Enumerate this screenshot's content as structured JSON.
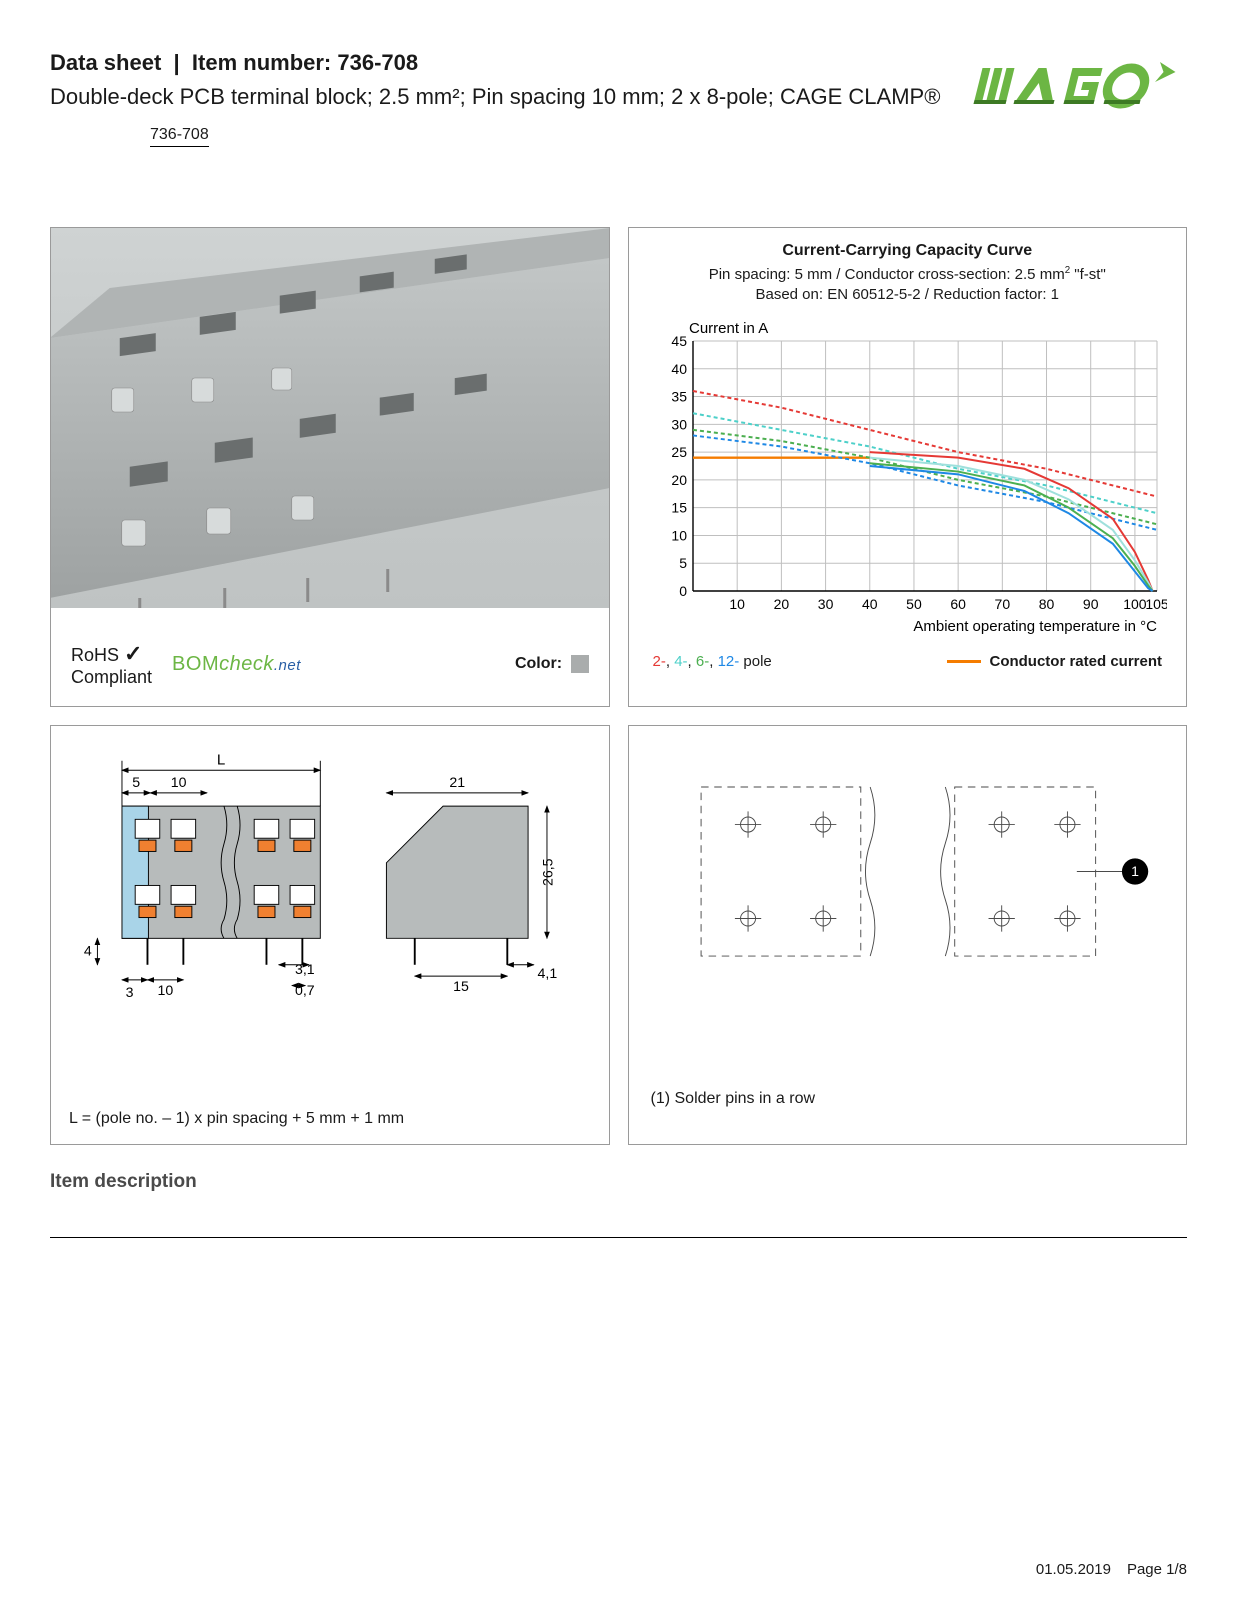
{
  "header": {
    "title_prefix": "Data sheet",
    "title_sep": "|",
    "title_label": "Item number:",
    "item_number": "736-708",
    "subtitle": "Double-deck PCB terminal block; 2.5 mm²; Pin spacing 10 mm; 2 x 8-pole; CAGE CLAMP®",
    "badge": "736-708"
  },
  "logo": {
    "brand": "WAGO",
    "fill": "#6cb644",
    "shadow": "#3d7a24"
  },
  "product_panel": {
    "rohs_label": "RoHS",
    "compliant_label": "Compliant",
    "bom_label": "BOM",
    "bom_check": "check",
    "bom_net": ".net",
    "color_label": "Color:",
    "swatch_color": "#a9acac"
  },
  "chart": {
    "title": "Current-Carrying Capacity Curve",
    "sub_line1_a": "Pin spacing: 5 mm / Conductor cross-section: 2.5 mm",
    "sub_line1_b": " \"f-st\"",
    "sub_line2": "Based on: EN 60512-5-2 / Reduction factor: 1",
    "y_label": "Current in A",
    "x_label": "Ambient operating temperature in °C",
    "y_ticks": [
      0,
      5,
      10,
      15,
      20,
      25,
      30,
      35,
      40,
      45
    ],
    "x_ticks": [
      10,
      20,
      30,
      40,
      50,
      60,
      70,
      80,
      90,
      100,
      105
    ],
    "ylim": [
      0,
      45
    ],
    "xlim": [
      0,
      105
    ],
    "grid_color": "#bfbfbf",
    "axis_color": "#000000",
    "bg": "#ffffff",
    "series": [
      {
        "name": "2-pole",
        "color": "#e53935",
        "dash": "4 3",
        "points": [
          [
            0,
            36
          ],
          [
            20,
            33
          ],
          [
            40,
            29
          ],
          [
            60,
            25
          ],
          [
            80,
            22
          ],
          [
            100,
            18
          ],
          [
            105,
            17
          ]
        ]
      },
      {
        "name": "4-pole",
        "color": "#4dd0c9",
        "dash": "4 3",
        "points": [
          [
            0,
            32
          ],
          [
            20,
            29
          ],
          [
            40,
            26
          ],
          [
            60,
            22
          ],
          [
            80,
            19
          ],
          [
            100,
            15
          ],
          [
            105,
            14
          ]
        ]
      },
      {
        "name": "6-pole",
        "color": "#4caf50",
        "dash": "4 3",
        "points": [
          [
            0,
            29
          ],
          [
            20,
            27
          ],
          [
            40,
            24
          ],
          [
            60,
            20
          ],
          [
            80,
            17
          ],
          [
            100,
            13
          ],
          [
            105,
            12
          ]
        ]
      },
      {
        "name": "12-pole",
        "color": "#1e88e5",
        "dash": "4 3",
        "points": [
          [
            0,
            28
          ],
          [
            20,
            26
          ],
          [
            40,
            23
          ],
          [
            60,
            19
          ],
          [
            80,
            16
          ],
          [
            100,
            12
          ],
          [
            105,
            11
          ]
        ]
      },
      {
        "name": "2-pole-solid",
        "color": "#e53935",
        "dash": "",
        "points": [
          [
            40,
            25
          ],
          [
            60,
            24
          ],
          [
            75,
            22
          ],
          [
            85,
            18.5
          ],
          [
            95,
            13
          ],
          [
            100,
            7
          ],
          [
            103,
            2
          ],
          [
            104,
            0
          ]
        ]
      },
      {
        "name": "4-pole-solid",
        "color": "#9fe0dc",
        "dash": "",
        "points": [
          [
            40,
            24
          ],
          [
            60,
            22.5
          ],
          [
            75,
            20
          ],
          [
            85,
            16.5
          ],
          [
            95,
            11
          ],
          [
            100,
            5.5
          ],
          [
            103,
            1.5
          ],
          [
            104,
            0
          ]
        ]
      },
      {
        "name": "6-pole-solid",
        "color": "#4caf50",
        "dash": "",
        "points": [
          [
            40,
            23
          ],
          [
            60,
            21.5
          ],
          [
            75,
            19
          ],
          [
            85,
            15
          ],
          [
            95,
            9.5
          ],
          [
            100,
            4.5
          ],
          [
            103,
            1
          ],
          [
            104,
            0
          ]
        ]
      },
      {
        "name": "12-pole-solid",
        "color": "#1e88e5",
        "dash": "",
        "points": [
          [
            40,
            22.5
          ],
          [
            60,
            21
          ],
          [
            75,
            18
          ],
          [
            85,
            14
          ],
          [
            95,
            8.5
          ],
          [
            100,
            3.5
          ],
          [
            103,
            0.5
          ],
          [
            104,
            0
          ]
        ]
      }
    ],
    "rated_current": {
      "color": "#f57c00",
      "value": 24,
      "x_end": 40
    },
    "legend_poles": [
      {
        "label": "2-",
        "color": "#e53935"
      },
      {
        "label": "4-",
        "color": "#4dd0c9"
      },
      {
        "label": "6-",
        "color": "#4caf50"
      },
      {
        "label": "12-",
        "color": "#1e88e5"
      }
    ],
    "legend_pole_suffix": " pole",
    "legend_cond": "Conductor rated current",
    "axis_fontsize": 14
  },
  "dim_drawing": {
    "L": "L",
    "d5": "5",
    "d10_top": "10",
    "d21": "21",
    "d26_5": "26,5",
    "d4": "4",
    "d10_bot": "10",
    "d3": "3",
    "d3_1": "3,1",
    "d0_7": "0,7",
    "d15": "15",
    "d4_1": "4,1",
    "body_gray": "#b7bbbb",
    "light_blue": "#a9d4e8",
    "orange": "#f08030",
    "line": "#000000",
    "formula": "L = (pole no. – 1) x pin spacing + 5 mm + 1 mm"
  },
  "footprint": {
    "note": "(1) Solder pins in a row",
    "callout": "1",
    "line": "#4a4a4a"
  },
  "section_header": "Item description",
  "footer": {
    "date": "01.05.2019",
    "page": "Page 1/8"
  }
}
